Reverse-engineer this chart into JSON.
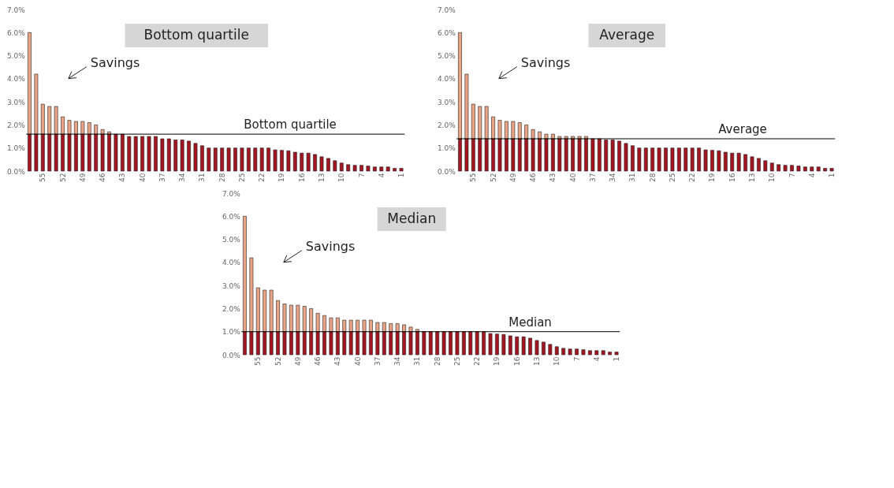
{
  "chart_data": [
    {
      "type": "bar",
      "title": "Bottom quartile",
      "stacked": true,
      "categories": [
        null,
        null,
        "55",
        null,
        null,
        "52",
        null,
        null,
        "49",
        null,
        null,
        "46",
        null,
        null,
        "43",
        null,
        null,
        "40",
        null,
        null,
        "37",
        null,
        null,
        "34",
        null,
        null,
        "31",
        null,
        null,
        "28",
        null,
        null,
        "25",
        null,
        null,
        "22",
        null,
        null,
        "19",
        null,
        null,
        "16",
        null,
        null,
        "13",
        null,
        null,
        "10",
        null,
        null,
        "7",
        null,
        null,
        "4",
        null,
        null,
        "1"
      ],
      "series": [
        {
          "color": "#a31520",
          "values": [
            1.6,
            1.6,
            1.6,
            1.6,
            1.6,
            1.6,
            1.6,
            1.6,
            1.6,
            1.6,
            1.6,
            1.6,
            1.6,
            1.6,
            1.6,
            1.5,
            1.5,
            1.5,
            1.5,
            1.5,
            1.4,
            1.4,
            1.35,
            1.35,
            1.3,
            1.2,
            1.1,
            1.0,
            1.0,
            1.0,
            1.0,
            1.0,
            1.0,
            1.0,
            1.0,
            1.0,
            1.0,
            0.92,
            0.9,
            0.88,
            0.82,
            0.78,
            0.78,
            0.72,
            0.62,
            0.55,
            0.45,
            0.35,
            0.28,
            0.25,
            0.25,
            0.22,
            0.18,
            0.18,
            0.18,
            0.12,
            0.12
          ]
        },
        {
          "color": "#e9a486",
          "values": [
            4.4,
            2.6,
            1.3,
            1.2,
            1.2,
            0.75,
            0.6,
            0.55,
            0.55,
            0.5,
            0.4,
            0.2,
            0.1,
            null,
            null,
            null,
            null,
            null,
            null,
            null,
            null,
            null,
            null,
            null,
            null,
            null,
            null,
            null,
            null,
            null,
            null,
            null,
            null,
            null,
            null,
            null,
            null,
            null,
            null,
            null,
            null,
            null,
            null,
            null,
            null,
            null,
            null,
            null,
            null,
            null,
            null,
            null,
            null,
            null,
            null,
            null,
            null
          ]
        }
      ],
      "ylim": [
        0,
        7
      ],
      "yticks": [
        {
          "value": 0,
          "label": "0.0%"
        },
        {
          "value": 1,
          "label": "1.0%"
        },
        {
          "value": 2,
          "label": "2.0%"
        },
        {
          "value": 3,
          "label": "3.0%"
        },
        {
          "value": 4,
          "label": "4.0%"
        },
        {
          "value": 5,
          "label": "5.0%"
        },
        {
          "value": 6,
          "label": "6.0%"
        },
        {
          "value": 7,
          "label": "7.0%"
        }
      ],
      "ref_lines": [
        {
          "axis": "y",
          "value": 1.6,
          "label": "Bottom quartile",
          "color": "#000000"
        }
      ],
      "annotations": [
        "Savings"
      ],
      "grid": false,
      "legend": false
    },
    {
      "type": "bar",
      "title": "Average",
      "stacked": true,
      "categories": [
        null,
        null,
        "55",
        null,
        null,
        "52",
        null,
        null,
        "49",
        null,
        null,
        "46",
        null,
        null,
        "43",
        null,
        null,
        "40",
        null,
        null,
        "37",
        null,
        null,
        "34",
        null,
        null,
        "31",
        null,
        null,
        "28",
        null,
        null,
        "25",
        null,
        null,
        "22",
        null,
        null,
        "19",
        null,
        null,
        "16",
        null,
        null,
        "13",
        null,
        null,
        "10",
        null,
        null,
        "7",
        null,
        null,
        "4",
        null,
        null,
        "1"
      ],
      "series": [
        {
          "color": "#a31520",
          "values": [
            1.4,
            1.4,
            1.4,
            1.4,
            1.4,
            1.4,
            1.4,
            1.4,
            1.4,
            1.4,
            1.4,
            1.4,
            1.4,
            1.4,
            1.4,
            1.4,
            1.4,
            1.4,
            1.4,
            1.4,
            1.4,
            1.4,
            1.35,
            1.35,
            1.3,
            1.2,
            1.1,
            1.0,
            1.0,
            1.0,
            1.0,
            1.0,
            1.0,
            1.0,
            1.0,
            1.0,
            1.0,
            0.92,
            0.9,
            0.88,
            0.82,
            0.78,
            0.78,
            0.72,
            0.62,
            0.55,
            0.45,
            0.35,
            0.28,
            0.25,
            0.25,
            0.22,
            0.18,
            0.18,
            0.18,
            0.12,
            0.12
          ]
        },
        {
          "color": "#e9a486",
          "values": [
            4.6,
            2.8,
            1.5,
            1.4,
            1.4,
            0.95,
            0.8,
            0.75,
            0.75,
            0.7,
            0.6,
            0.4,
            0.3,
            0.2,
            0.2,
            0.1,
            0.1,
            0.1,
            0.1,
            0.1,
            null,
            null,
            null,
            null,
            null,
            null,
            null,
            null,
            null,
            null,
            null,
            null,
            null,
            null,
            null,
            null,
            null,
            null,
            null,
            null,
            null,
            null,
            null,
            null,
            null,
            null,
            null,
            null,
            null,
            null,
            null,
            null,
            null,
            null,
            null,
            null,
            null
          ]
        }
      ],
      "ylim": [
        0,
        7
      ],
      "yticks": [
        {
          "value": 0,
          "label": "0.0%"
        },
        {
          "value": 1,
          "label": "1.0%"
        },
        {
          "value": 2,
          "label": "2.0%"
        },
        {
          "value": 3,
          "label": "3.0%"
        },
        {
          "value": 4,
          "label": "4.0%"
        },
        {
          "value": 5,
          "label": "5.0%"
        },
        {
          "value": 6,
          "label": "6.0%"
        },
        {
          "value": 7,
          "label": "7.0%"
        }
      ],
      "ref_lines": [
        {
          "axis": "y",
          "value": 1.4,
          "label": "Average",
          "color": "#000000"
        }
      ],
      "annotations": [
        "Savings"
      ],
      "grid": false,
      "legend": false
    },
    {
      "type": "bar",
      "title": "Median",
      "stacked": true,
      "categories": [
        null,
        null,
        "55",
        null,
        null,
        "52",
        null,
        null,
        "49",
        null,
        null,
        "46",
        null,
        null,
        "43",
        null,
        null,
        "40",
        null,
        null,
        "37",
        null,
        null,
        "34",
        null,
        null,
        "31",
        null,
        null,
        "28",
        null,
        null,
        "25",
        null,
        null,
        "22",
        null,
        null,
        "19",
        null,
        null,
        "16",
        null,
        null,
        "13",
        null,
        null,
        "10",
        null,
        null,
        "7",
        null,
        null,
        "4",
        null,
        null,
        "1"
      ],
      "series": [
        {
          "color": "#a31520",
          "values": [
            1.0,
            1.0,
            1.0,
            1.0,
            1.0,
            1.0,
            1.0,
            1.0,
            1.0,
            1.0,
            1.0,
            1.0,
            1.0,
            1.0,
            1.0,
            1.0,
            1.0,
            1.0,
            1.0,
            1.0,
            1.0,
            1.0,
            1.0,
            1.0,
            1.0,
            1.0,
            1.0,
            1.0,
            1.0,
            1.0,
            1.0,
            1.0,
            1.0,
            1.0,
            1.0,
            1.0,
            1.0,
            0.92,
            0.9,
            0.88,
            0.82,
            0.78,
            0.78,
            0.72,
            0.62,
            0.55,
            0.45,
            0.35,
            0.28,
            0.25,
            0.25,
            0.22,
            0.18,
            0.18,
            0.18,
            0.12,
            0.12
          ]
        },
        {
          "color": "#e9a486",
          "values": [
            5.0,
            3.2,
            1.9,
            1.8,
            1.8,
            1.35,
            1.2,
            1.15,
            1.15,
            1.1,
            1.0,
            0.8,
            0.7,
            0.6,
            0.6,
            0.5,
            0.5,
            0.5,
            0.5,
            0.5,
            0.4,
            0.4,
            0.35,
            0.35,
            0.3,
            0.2,
            0.1,
            null,
            null,
            null,
            null,
            null,
            null,
            null,
            null,
            null,
            null,
            null,
            null,
            null,
            null,
            null,
            null,
            null,
            null,
            null,
            null,
            null,
            null,
            null,
            null,
            null,
            null,
            null,
            null,
            null,
            null
          ]
        }
      ],
      "ylim": [
        0,
        7
      ],
      "yticks": [
        {
          "value": 0,
          "label": "0.0%"
        },
        {
          "value": 1,
          "label": "1.0%"
        },
        {
          "value": 2,
          "label": "2.0%"
        },
        {
          "value": 3,
          "label": "3.0%"
        },
        {
          "value": 4,
          "label": "4.0%"
        },
        {
          "value": 5,
          "label": "5.0%"
        },
        {
          "value": 6,
          "label": "6.0%"
        },
        {
          "value": 7,
          "label": "7.0%"
        }
      ],
      "ref_lines": [
        {
          "axis": "y",
          "value": 1.0,
          "label": "Median",
          "color": "#000000"
        }
      ],
      "annotations": [
        "Savings"
      ],
      "grid": false,
      "legend": false
    }
  ]
}
